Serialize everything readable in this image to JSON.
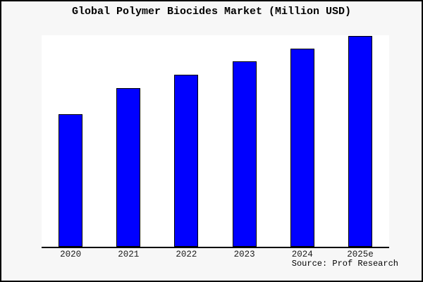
{
  "page": {
    "background_color": "#f7f7f7",
    "frame_border_color": "#000000"
  },
  "chart_data": {
    "type": "bar",
    "title": "Global Polymer Biocides Market (Million USD)",
    "categories": [
      "2020",
      "2021",
      "2022",
      "2023",
      "2024",
      "2025e"
    ],
    "values": [
      188,
      225,
      244,
      263,
      281,
      299
    ],
    "ylim": [
      0,
      300
    ],
    "xlabel": "",
    "ylabel": "",
    "grid": false,
    "legend_position": "none",
    "y_axis_ticks_visible": false,
    "value_note": "y-axis is unlabeled in the source image; values are relative units estimated from bar heights (plot height = 300 units)",
    "bar_fill": "#0000ff",
    "bar_edge": "#000000",
    "plot_background": "#ffffff",
    "axis_line_color": "#000000",
    "source": "Source: Prof Research"
  }
}
